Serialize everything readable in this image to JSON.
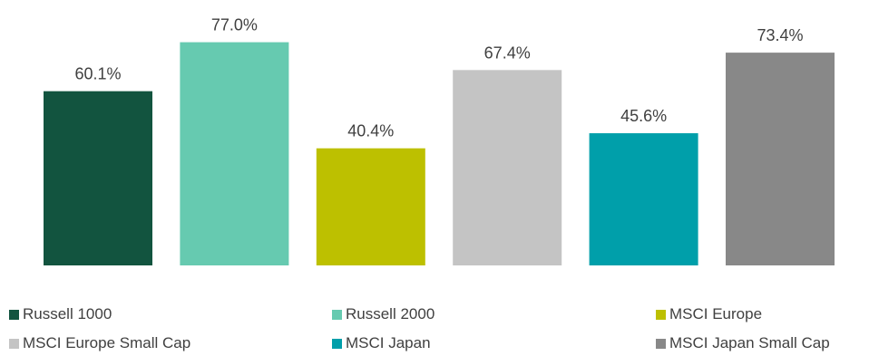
{
  "chart_data": {
    "type": "bar",
    "categories": [
      "Russell 1000",
      "Russell 2000",
      "MSCI Europe",
      "MSCI Europe Small Cap",
      "MSCI Japan",
      "MSCI Japan Small Cap"
    ],
    "values": [
      60.1,
      77.0,
      40.4,
      67.4,
      45.6,
      73.4
    ],
    "value_labels": [
      "60.1%",
      "77.0%",
      "40.4%",
      "67.4%",
      "45.6%",
      "73.4%"
    ],
    "colors": [
      "#12543F",
      "#66CAB0",
      "#BDC000",
      "#C4C4C4",
      "#009FAA",
      "#888888"
    ],
    "ylim": [
      0,
      80
    ],
    "grid": false,
    "legend_position": "bottom",
    "title": "",
    "xlabel": "",
    "ylabel": ""
  },
  "legend": {
    "items": [
      {
        "label": "Russell 1000",
        "color": "#12543F"
      },
      {
        "label": "Russell 2000",
        "color": "#66CAB0"
      },
      {
        "label": "MSCI Europe",
        "color": "#BDC000"
      },
      {
        "label": "MSCI Europe Small Cap",
        "color": "#C4C4C4"
      },
      {
        "label": "MSCI Japan",
        "color": "#009FAA"
      },
      {
        "label": "MSCI Japan Small Cap",
        "color": "#888888"
      }
    ]
  }
}
